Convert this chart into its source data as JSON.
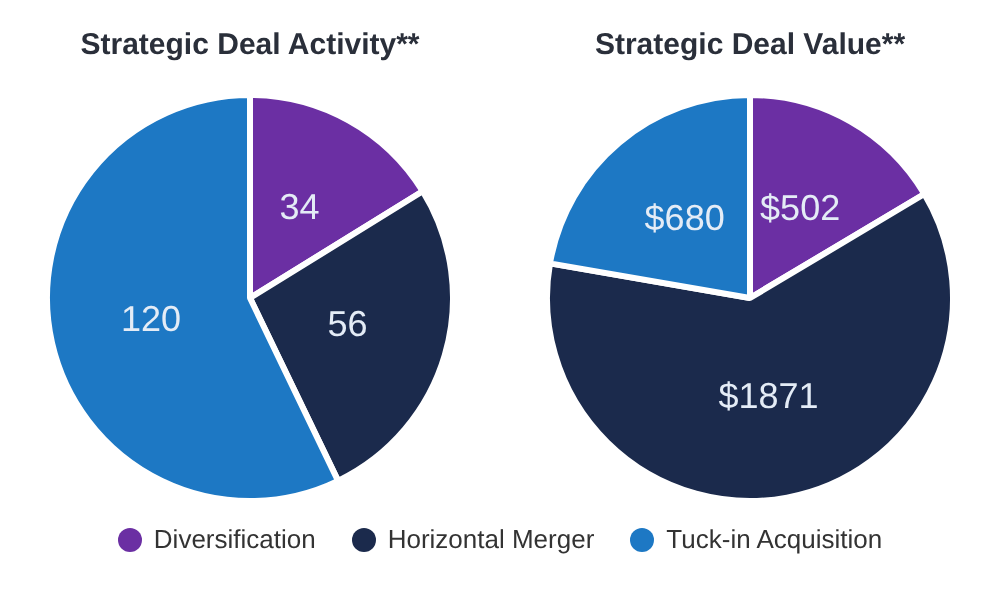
{
  "chart_data": [
    {
      "type": "pie",
      "title": "Strategic Deal Activity**",
      "categories": [
        null,
        null,
        null
      ],
      "values": [
        34,
        56,
        120
      ],
      "colors": [
        "#6b2fa3",
        "#1b2a4c",
        "#1d78c4"
      ],
      "data_labels": true
    },
    {
      "type": "pie",
      "title": "Strategic Deal Value**",
      "categories": [
        "Diversification",
        "Horizontal Merger",
        "Tuck-in Acquisition"
      ],
      "values": [
        502,
        1871,
        680
      ],
      "value_labels": [
        "$502",
        "$1871",
        "$680"
      ],
      "colors": [
        "#6b2fa3",
        "#1b2a4c",
        "#1d78c4"
      ],
      "legend": "bottom"
    }
  ]
}
